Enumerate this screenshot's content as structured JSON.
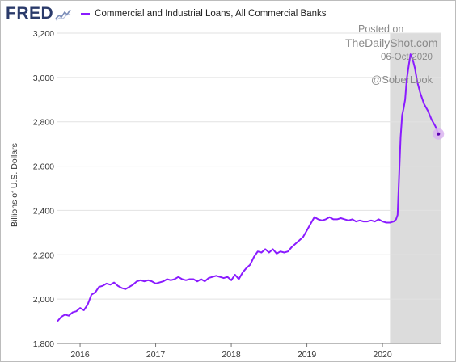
{
  "app": {
    "logo_text": "FRED",
    "legend_label": "Commercial and Industrial Loans, All Commercial Banks",
    "series_color": "#8a1bff",
    "recession_shade_color": "#dcdcdc"
  },
  "watermark": {
    "line1": "Posted on",
    "line2": "TheDailyShot.com",
    "line3": "06-Oct-2020",
    "line4": "@SoberLook"
  },
  "chart_data": {
    "type": "line",
    "title": "Commercial and Industrial Loans, All Commercial Banks",
    "ylabel": "Billions of U.S. Dollars",
    "xlabel": "",
    "ylim": [
      1800,
      3200
    ],
    "xlim": [
      2015.7,
      2020.78
    ],
    "y_ticks": [
      1800,
      2000,
      2200,
      2400,
      2600,
      2800,
      3000,
      3200
    ],
    "y_tick_labels": [
      "1,800",
      "2,000",
      "2,200",
      "2,400",
      "2,600",
      "2,800",
      "3,000",
      "3,200"
    ],
    "x_ticks": [
      2016,
      2017,
      2018,
      2019,
      2020
    ],
    "x_tick_labels": [
      "2016",
      "2017",
      "2018",
      "2019",
      "2020"
    ],
    "grid": true,
    "shaded_region": {
      "x_start": 2020.1,
      "x_end": 2020.78
    },
    "series": [
      {
        "name": "Commercial and Industrial Loans, All Commercial Banks",
        "points": [
          [
            2015.7,
            1900
          ],
          [
            2015.75,
            1920
          ],
          [
            2015.8,
            1930
          ],
          [
            2015.85,
            1925
          ],
          [
            2015.9,
            1940
          ],
          [
            2015.95,
            1945
          ],
          [
            2016.0,
            1960
          ],
          [
            2016.05,
            1950
          ],
          [
            2016.1,
            1975
          ],
          [
            2016.15,
            2020
          ],
          [
            2016.2,
            2030
          ],
          [
            2016.25,
            2055
          ],
          [
            2016.3,
            2060
          ],
          [
            2016.35,
            2070
          ],
          [
            2016.4,
            2065
          ],
          [
            2016.45,
            2075
          ],
          [
            2016.5,
            2060
          ],
          [
            2016.55,
            2050
          ],
          [
            2016.6,
            2045
          ],
          [
            2016.65,
            2055
          ],
          [
            2016.7,
            2065
          ],
          [
            2016.75,
            2080
          ],
          [
            2016.8,
            2085
          ],
          [
            2016.85,
            2080
          ],
          [
            2016.9,
            2085
          ],
          [
            2016.95,
            2080
          ],
          [
            2017.0,
            2070
          ],
          [
            2017.05,
            2075
          ],
          [
            2017.1,
            2080
          ],
          [
            2017.15,
            2090
          ],
          [
            2017.2,
            2085
          ],
          [
            2017.25,
            2090
          ],
          [
            2017.3,
            2100
          ],
          [
            2017.35,
            2090
          ],
          [
            2017.4,
            2085
          ],
          [
            2017.45,
            2090
          ],
          [
            2017.5,
            2090
          ],
          [
            2017.55,
            2080
          ],
          [
            2017.6,
            2090
          ],
          [
            2017.65,
            2080
          ],
          [
            2017.7,
            2095
          ],
          [
            2017.75,
            2100
          ],
          [
            2017.8,
            2105
          ],
          [
            2017.85,
            2100
          ],
          [
            2017.9,
            2095
          ],
          [
            2017.95,
            2100
          ],
          [
            2018.0,
            2085
          ],
          [
            2018.05,
            2110
          ],
          [
            2018.1,
            2090
          ],
          [
            2018.15,
            2120
          ],
          [
            2018.2,
            2140
          ],
          [
            2018.25,
            2155
          ],
          [
            2018.3,
            2190
          ],
          [
            2018.35,
            2215
          ],
          [
            2018.4,
            2210
          ],
          [
            2018.45,
            2225
          ],
          [
            2018.5,
            2210
          ],
          [
            2018.55,
            2225
          ],
          [
            2018.6,
            2205
          ],
          [
            2018.65,
            2215
          ],
          [
            2018.7,
            2210
          ],
          [
            2018.75,
            2215
          ],
          [
            2018.8,
            2235
          ],
          [
            2018.85,
            2250
          ],
          [
            2018.9,
            2265
          ],
          [
            2018.95,
            2280
          ],
          [
            2019.0,
            2310
          ],
          [
            2019.05,
            2340
          ],
          [
            2019.1,
            2370
          ],
          [
            2019.15,
            2360
          ],
          [
            2019.2,
            2355
          ],
          [
            2019.25,
            2360
          ],
          [
            2019.3,
            2370
          ],
          [
            2019.35,
            2360
          ],
          [
            2019.4,
            2360
          ],
          [
            2019.45,
            2365
          ],
          [
            2019.5,
            2360
          ],
          [
            2019.55,
            2355
          ],
          [
            2019.6,
            2360
          ],
          [
            2019.65,
            2350
          ],
          [
            2019.7,
            2355
          ],
          [
            2019.75,
            2350
          ],
          [
            2019.8,
            2350
          ],
          [
            2019.85,
            2355
          ],
          [
            2019.9,
            2350
          ],
          [
            2019.95,
            2360
          ],
          [
            2020.0,
            2350
          ],
          [
            2020.05,
            2345
          ],
          [
            2020.1,
            2345
          ],
          [
            2020.15,
            2350
          ],
          [
            2020.18,
            2360
          ],
          [
            2020.2,
            2380
          ],
          [
            2020.22,
            2550
          ],
          [
            2020.24,
            2730
          ],
          [
            2020.26,
            2830
          ],
          [
            2020.28,
            2860
          ],
          [
            2020.3,
            2900
          ],
          [
            2020.32,
            2990
          ],
          [
            2020.35,
            3060
          ],
          [
            2020.37,
            3105
          ],
          [
            2020.4,
            3080
          ],
          [
            2020.43,
            3040
          ],
          [
            2020.46,
            2980
          ],
          [
            2020.5,
            2930
          ],
          [
            2020.55,
            2880
          ],
          [
            2020.6,
            2850
          ],
          [
            2020.65,
            2810
          ],
          [
            2020.7,
            2780
          ],
          [
            2020.74,
            2745
          ]
        ]
      }
    ]
  }
}
